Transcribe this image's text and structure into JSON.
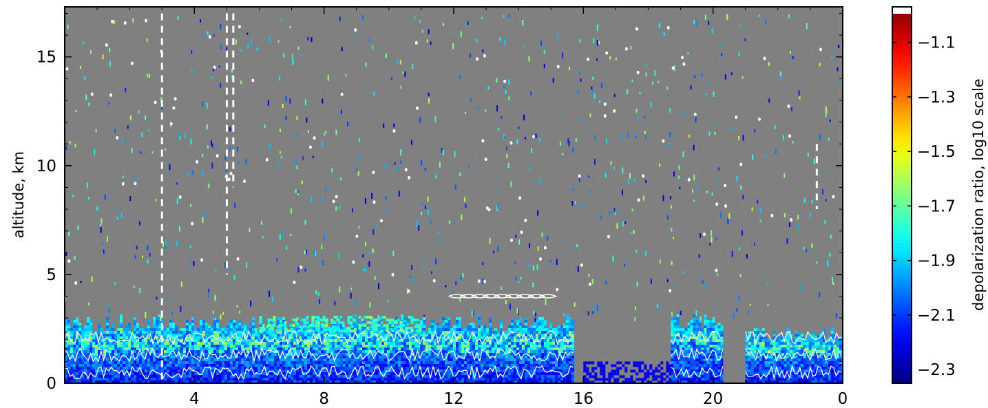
{
  "chart_data": {
    "type": "heatmap",
    "title": "",
    "xlabel": "",
    "ylabel": "altitude, km",
    "x_ticks": [
      "4",
      "8",
      "12",
      "16",
      "20",
      "0"
    ],
    "y_ticks": [
      "0",
      "5",
      "10",
      "15"
    ],
    "ylim": [
      0,
      17.3
    ],
    "colorbar": {
      "label": "depolarization ratio, log10 scale",
      "ticks": [
        "−1.1",
        "−1.3",
        "−1.5",
        "−1.7",
        "−1.9",
        "−2.1",
        "−2.3"
      ],
      "tick_values": [
        -1.1,
        -1.3,
        -1.5,
        -1.7,
        -1.9,
        -2.1,
        -2.3
      ],
      "range": [
        -2.35,
        -0.97
      ],
      "colormap": "jet"
    },
    "background_color": "#808080",
    "contour_color": "#ffffff",
    "low_layer": {
      "description_values": "depolarization mostly -2.3 to -1.7 below ~3 km",
      "segments": [
        {
          "x_from": 0.0,
          "x_to": 15.7,
          "top_km": 2.9
        },
        {
          "x_from": 18.7,
          "x_to": 20.3,
          "top_km": 3.0
        },
        {
          "x_from": 21.0,
          "x_to": 24.0,
          "top_km": 2.4
        }
      ]
    }
  }
}
